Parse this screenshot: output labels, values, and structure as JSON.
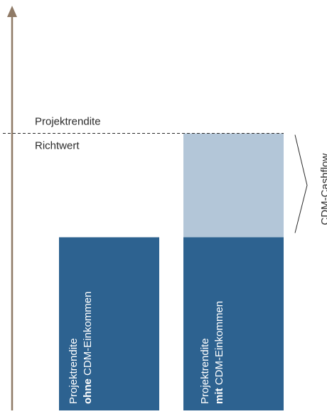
{
  "chart_data": {
    "type": "bar",
    "title": "",
    "xlabel": "",
    "ylabel": "",
    "reference_line": {
      "label_above": "Projektrendite",
      "label_below": "Richtwert",
      "style": "dashed",
      "level": 0.72
    },
    "bars": [
      {
        "label_line1": "Projektrendite",
        "label_line2_bold": "ohne",
        "label_line2_rest": " CDM-Einkommen",
        "base_level": 0.45,
        "addon_level": 0,
        "color": "#2d6290"
      },
      {
        "label_line1": "Projektrendite",
        "label_line2_bold": "mit",
        "label_line2_rest": " CDM-Einkommen",
        "base_level": 0.45,
        "addon_level": 0.27,
        "color": "#2d6290",
        "addon_color": "#b3c6d8"
      }
    ],
    "brace_label": "CDM-Cashflow",
    "colors": {
      "axis": "#8f7a66",
      "bar": "#2d6290",
      "addon": "#b3c6d8",
      "line": "#2b2b2b"
    }
  }
}
